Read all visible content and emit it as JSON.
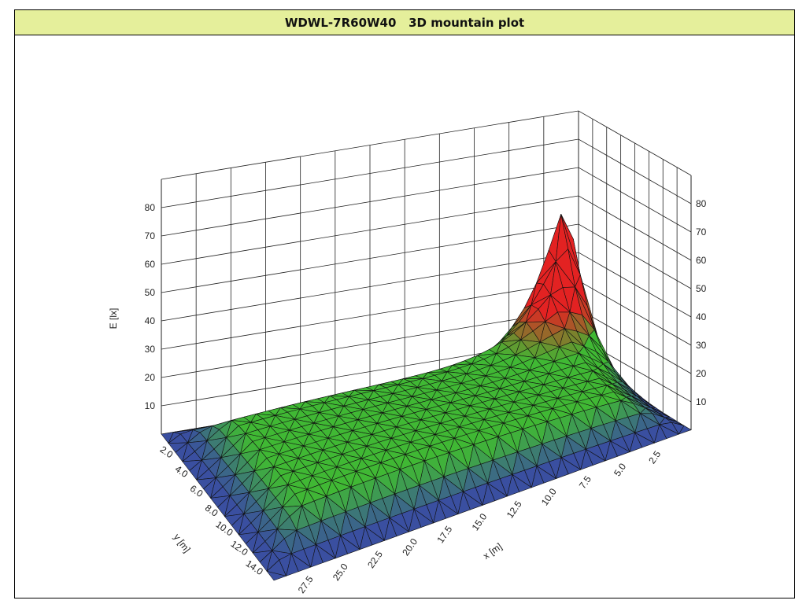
{
  "title": "WDWL-7R60W40   3D mountain plot",
  "colors": {
    "title_bg": "#e5ef9b",
    "low": "#3a4fa0",
    "mid": "#40b834",
    "high": "#e32222",
    "mesh": "#111111",
    "grid": "#222222"
  },
  "chart_data": {
    "type": "surface-3d",
    "title": "WDWL-7R60W40   3D mountain plot",
    "zlabel": "E [lx]",
    "xlabel": "x [m]",
    "ylabel": "y [m]",
    "z_ticks": [
      "10",
      "20",
      "30",
      "40",
      "50",
      "60",
      "70",
      "80"
    ],
    "x_ticks": [
      "2.5",
      "5.0",
      "7.5",
      "10.0",
      "12.5",
      "15.0",
      "17.5",
      "20.0",
      "22.5",
      "25.0",
      "27.5"
    ],
    "y_ticks": [
      "2.0",
      "4.0",
      "6.0",
      "8.0",
      "10.0",
      "12.0",
      "14.0"
    ],
    "x_range": [
      0,
      30
    ],
    "y_range": [
      0,
      15
    ],
    "z_range": [
      0,
      90
    ],
    "peak": {
      "x": 1.5,
      "y": 14.5,
      "E": 84
    },
    "plateau_level": 15,
    "grid": true
  }
}
